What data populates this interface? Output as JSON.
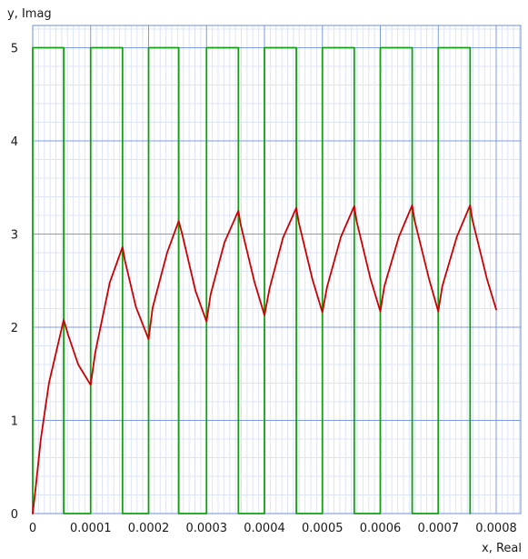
{
  "chart_data": {
    "type": "line",
    "xlabel": "x, Real",
    "ylabel": "y, Imag",
    "xlim": [
      0,
      0.0008
    ],
    "ylim": [
      0,
      5.2
    ],
    "grid": true,
    "x_ticks": [
      "0",
      "0.0001",
      "0.0002",
      "0.0003",
      "0.0004",
      "0.0005",
      "0.0006",
      "0.0007",
      "0.0008"
    ],
    "y_ticks": [
      "0",
      "1",
      "2",
      "3",
      "4",
      "5"
    ],
    "series": [
      {
        "color": "#13a013",
        "points": [
          [
            0,
            0
          ],
          [
            0,
            5
          ],
          [
            5.35e-05,
            5
          ],
          [
            5.35e-05,
            0
          ],
          [
            0.0001,
            0
          ],
          [
            0.0001,
            5
          ],
          [
            0.000155,
            5
          ],
          [
            0.000155,
            0
          ],
          [
            0.0002,
            0
          ],
          [
            0.0002,
            5
          ],
          [
            0.000252,
            5
          ],
          [
            0.000252,
            0
          ],
          [
            0.0003,
            0
          ],
          [
            0.0003,
            5
          ],
          [
            0.000355,
            5
          ],
          [
            0.000355,
            0
          ],
          [
            0.0004,
            0
          ],
          [
            0.0004,
            5
          ],
          [
            0.000455,
            5
          ],
          [
            0.000455,
            0
          ],
          [
            0.0005,
            0
          ],
          [
            0.0005,
            5
          ],
          [
            0.000555,
            5
          ],
          [
            0.000555,
            0
          ],
          [
            0.0006,
            0
          ],
          [
            0.0006,
            5
          ],
          [
            0.000655,
            5
          ],
          [
            0.000655,
            0
          ],
          [
            0.0007,
            0
          ],
          [
            0.0007,
            5
          ],
          [
            0.000755,
            5
          ],
          [
            0.000755,
            0
          ]
        ]
      },
      {
        "color": "#cc0000",
        "points": [
          [
            0,
            0
          ],
          [
            5.5e-06,
            0.3
          ],
          [
            1.4e-05,
            0.8
          ],
          [
            2.8e-05,
            1.4
          ],
          [
            5.35e-05,
            2.08
          ],
          [
            6.05e-05,
            1.93
          ],
          [
            7.85e-05,
            1.6
          ],
          [
            0.0001,
            1.38
          ],
          [
            0.000108,
            1.73
          ],
          [
            0.000133,
            2.48
          ],
          [
            0.000155,
            2.86
          ],
          [
            0.000159,
            2.72
          ],
          [
            0.000178,
            2.22
          ],
          [
            0.0002,
            1.87
          ],
          [
            0.000207,
            2.21
          ],
          [
            0.000232,
            2.8
          ],
          [
            0.000252,
            3.14
          ],
          [
            0.000258,
            3.0
          ],
          [
            0.000281,
            2.39
          ],
          [
            0.0003,
            2.06
          ],
          [
            0.000307,
            2.35
          ],
          [
            0.000331,
            2.91
          ],
          [
            0.000355,
            3.25
          ],
          [
            0.000359,
            3.1
          ],
          [
            0.000383,
            2.48
          ],
          [
            0.0004,
            2.13
          ],
          [
            0.000409,
            2.42
          ],
          [
            0.000432,
            2.96
          ],
          [
            0.000455,
            3.28
          ],
          [
            0.000459,
            3.13
          ],
          [
            0.000483,
            2.51
          ],
          [
            0.0005,
            2.16
          ],
          [
            0.000508,
            2.43
          ],
          [
            0.000532,
            2.97
          ],
          [
            0.000555,
            3.3
          ],
          [
            0.000559,
            3.14
          ],
          [
            0.000583,
            2.52
          ],
          [
            0.0006,
            2.17
          ],
          [
            0.000607,
            2.44
          ],
          [
            0.000632,
            2.97
          ],
          [
            0.000655,
            3.31
          ],
          [
            0.000659,
            3.15
          ],
          [
            0.000684,
            2.52
          ],
          [
            0.0007,
            2.17
          ],
          [
            0.000707,
            2.44
          ],
          [
            0.000732,
            2.97
          ],
          [
            0.000755,
            3.31
          ],
          [
            0.000759,
            3.15
          ],
          [
            0.000784,
            2.52
          ],
          [
            0.0008,
            2.19
          ]
        ]
      }
    ]
  }
}
